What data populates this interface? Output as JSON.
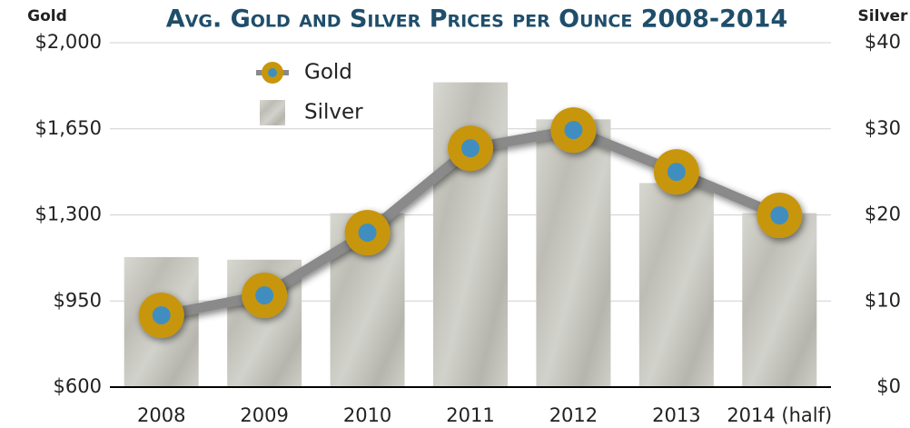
{
  "chart_data": {
    "type": "combo",
    "title": "Avg. Gold and Silver Prices per Ounce 2008-2014",
    "y_label": "Gold",
    "y2_label": "Silver",
    "categories": [
      "2008",
      "2009",
      "2010",
      "2011",
      "2012",
      "2013",
      "2014 (half)"
    ],
    "series": [
      {
        "name": "Gold",
        "type": "line",
        "axis": "y",
        "color": "#c8960a",
        "values": [
          892,
          973,
          1228,
          1571,
          1645,
          1475,
          1298
        ]
      },
      {
        "name": "Silver",
        "type": "bar",
        "axis": "y2",
        "color": "#c4c4bc",
        "values": [
          15.1,
          14.8,
          20.2,
          35.4,
          31.1,
          23.7,
          20.2
        ]
      }
    ],
    "ylim": [
      600,
      2000
    ],
    "yticks": [
      {
        "value": 600,
        "label": "$600"
      },
      {
        "value": 950,
        "label": "$950"
      },
      {
        "value": 1300,
        "label": "$1,300"
      },
      {
        "value": 1650,
        "label": "$1,650"
      },
      {
        "value": 2000,
        "label": "$2,000"
      }
    ],
    "y2lim": [
      0,
      40
    ],
    "y2ticks": [
      {
        "value": 0,
        "label": "$0"
      },
      {
        "value": 10,
        "label": "$10"
      },
      {
        "value": 20,
        "label": "$20"
      },
      {
        "value": 30,
        "label": "$30"
      },
      {
        "value": 40,
        "label": "$40"
      }
    ],
    "grid": true,
    "legend": "top-left"
  }
}
